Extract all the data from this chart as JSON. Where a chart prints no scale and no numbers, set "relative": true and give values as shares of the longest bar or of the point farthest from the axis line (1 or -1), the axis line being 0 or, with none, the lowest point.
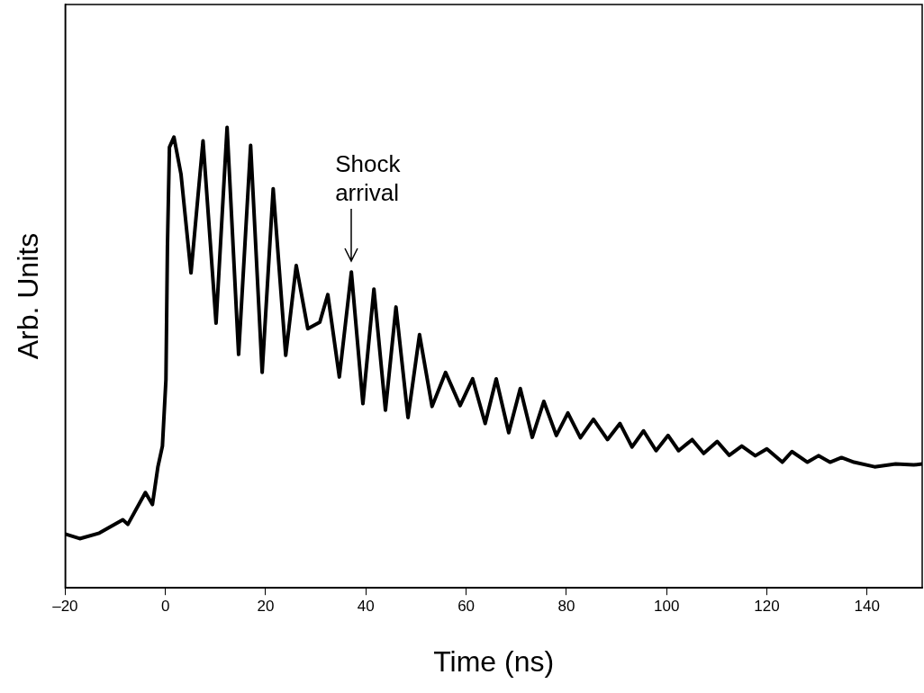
{
  "chart_data": {
    "type": "line",
    "xlabel": "Time (ns)",
    "ylabel": "Arb. Units",
    "relative": true,
    "color": "#000000",
    "grid": false,
    "legend": false,
    "marker": "none",
    "line_style": "solid",
    "xlim": [
      -20,
      151
    ],
    "xticks": [
      {
        "value": -20,
        "label": "–20"
      },
      0,
      20,
      40,
      60,
      80,
      100,
      120,
      140
    ],
    "annotations": [
      {
        "text": "Shock\narrival",
        "x": 37.1,
        "y": 0.686
      }
    ],
    "x": [
      -20,
      -17.1,
      -13.2,
      -8.5,
      -7.5,
      -4.0,
      -2.6,
      -1.5,
      -0.6,
      0.1,
      0.4,
      0.8,
      1.7,
      3.1,
      5.1,
      7.5,
      10.1,
      12.3,
      14.6,
      17.0,
      19.3,
      21.5,
      24.0,
      26.1,
      28.4,
      30.8,
      32.4,
      34.7,
      37.1,
      39.4,
      41.6,
      43.9,
      46.0,
      48.4,
      50.7,
      53.2,
      55.9,
      58.8,
      61.3,
      63.8,
      66.0,
      68.5,
      70.8,
      73.2,
      75.5,
      78.0,
      80.3,
      82.8,
      85.4,
      88.2,
      90.7,
      93.1,
      95.4,
      97.9,
      100.3,
      102.4,
      105.1,
      107.4,
      110.1,
      112.5,
      115.0,
      117.7,
      120.0,
      123.1,
      125.0,
      128.1,
      130.3,
      132.6,
      134.9,
      137.4,
      141.5,
      145.7,
      149.3,
      151
    ],
    "values": [
      0.117,
      0.107,
      0.119,
      0.148,
      0.138,
      0.207,
      0.181,
      0.263,
      0.308,
      0.452,
      0.741,
      0.957,
      0.979,
      0.899,
      0.684,
      0.971,
      0.575,
      1.0,
      0.507,
      0.961,
      0.468,
      0.867,
      0.505,
      0.7,
      0.563,
      0.577,
      0.637,
      0.458,
      0.686,
      0.4,
      0.649,
      0.386,
      0.61,
      0.37,
      0.55,
      0.394,
      0.468,
      0.396,
      0.454,
      0.357,
      0.454,
      0.337,
      0.433,
      0.327,
      0.405,
      0.331,
      0.38,
      0.326,
      0.366,
      0.322,
      0.357,
      0.306,
      0.341,
      0.298,
      0.331,
      0.298,
      0.322,
      0.292,
      0.318,
      0.288,
      0.308,
      0.287,
      0.302,
      0.273,
      0.296,
      0.273,
      0.287,
      0.273,
      0.283,
      0.273,
      0.263,
      0.269,
      0.267,
      0.269
    ]
  }
}
